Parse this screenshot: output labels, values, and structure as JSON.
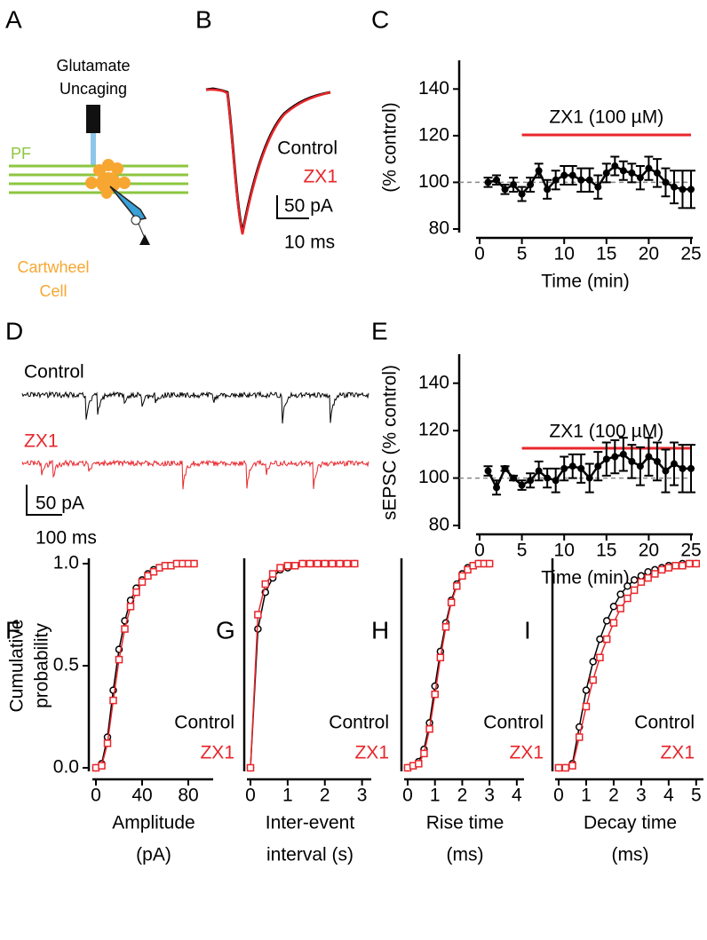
{
  "panel_labels": [
    "A",
    "B",
    "C",
    "D",
    "E",
    "F",
    "G",
    "H",
    "I"
  ],
  "diagram": {
    "uncaging": [
      "Glutamate",
      "Uncaging"
    ],
    "fiber": "PF",
    "cell": [
      "Cartwheel",
      "Cell"
    ]
  },
  "trace_b": {
    "legend": [
      "Control",
      "ZX1"
    ],
    "scale": [
      "50 pA",
      "10 ms"
    ]
  },
  "trace_d": {
    "legend": [
      "Control",
      "ZX1"
    ],
    "scale": [
      "50 pA",
      "100 ms"
    ]
  },
  "chart_data": [
    {
      "type": "line",
      "ylabel": [
        "(% control)"
      ],
      "xlabel": [
        "Time (min)"
      ],
      "annotation": "ZX1 (100 µM)",
      "annotation_span": [
        5,
        25
      ],
      "annotation_color": "#e8262b",
      "reference_line": 100,
      "xlim": [
        0,
        25
      ],
      "xticks": [
        0,
        5,
        10,
        15,
        20,
        25
      ],
      "ylim": [
        80,
        150
      ],
      "yticks": [
        80,
        100,
        120,
        140
      ],
      "x": [
        1,
        2,
        3,
        4,
        5,
        6,
        7,
        8,
        9,
        10,
        11,
        12,
        13,
        14,
        15,
        16,
        17,
        18,
        19,
        20,
        21,
        22,
        23,
        24,
        25
      ],
      "series": [
        {
          "color": "#000000",
          "marker": "dot",
          "values": [
            100,
            101,
            97,
            99,
            95,
            99,
            105,
            97,
            101,
            103,
            103,
            101,
            101,
            98,
            104,
            107,
            105,
            104,
            102,
            106,
            104,
            100,
            98,
            97,
            97
          ],
          "errors": [
            2,
            2,
            2,
            3,
            3,
            3,
            3,
            4,
            4,
            4,
            4,
            5,
            5,
            5,
            4,
            4,
            4,
            4,
            5,
            5,
            6,
            6,
            7,
            8,
            8
          ]
        }
      ]
    },
    {
      "type": "line",
      "ylabel": [
        "sEPSC (% control)"
      ],
      "xlabel": [
        "Time (min)"
      ],
      "annotation": "ZX1 (100 µM)",
      "annotation_span": [
        5,
        25
      ],
      "annotation_color": "#e8262b",
      "reference_line": 100,
      "xlim": [
        0,
        25
      ],
      "xticks": [
        0,
        5,
        10,
        15,
        20,
        25
      ],
      "ylim": [
        80,
        150
      ],
      "yticks": [
        80,
        100,
        120,
        140
      ],
      "x": [
        1,
        2,
        3,
        4,
        5,
        6,
        7,
        8,
        9,
        10,
        11,
        12,
        13,
        14,
        15,
        16,
        17,
        18,
        19,
        20,
        21,
        22,
        23,
        24,
        25
      ],
      "series": [
        {
          "color": "#000000",
          "marker": "dot",
          "values": [
            103,
            96,
            104,
            100,
            97,
            99,
            103,
            100,
            99,
            104,
            105,
            104,
            100,
            105,
            108,
            109,
            110,
            107,
            105,
            109,
            107,
            103,
            106,
            104,
            104
          ],
          "errors": [
            2,
            3,
            1,
            1,
            2,
            3,
            4,
            4,
            5,
            5,
            5,
            6,
            6,
            6,
            7,
            7,
            7,
            7,
            8,
            8,
            8,
            9,
            9,
            10,
            10
          ]
        }
      ]
    },
    {
      "type": "line",
      "ylabel": [
        "Cumulative",
        "probability"
      ],
      "xlabel": [
        "Amplitude",
        "(pA)"
      ],
      "xlim": [
        0,
        100
      ],
      "xticks": [
        0,
        40,
        80
      ],
      "ylim": [
        0,
        1
      ],
      "yticks": [
        {
          "value": 0,
          "label": "0.0"
        },
        {
          "value": 0.5,
          "label": "0.5"
        },
        {
          "value": 1,
          "label": "1.0"
        }
      ],
      "x": [
        0,
        5,
        10,
        15,
        20,
        25,
        30,
        35,
        40,
        45,
        50,
        55,
        60,
        65,
        70,
        75,
        80,
        85
      ],
      "series": [
        {
          "name": "Control",
          "color": "#000000",
          "marker": "circle",
          "values": [
            0,
            0.02,
            0.15,
            0.38,
            0.58,
            0.72,
            0.82,
            0.88,
            0.92,
            0.95,
            0.97,
            0.98,
            0.99,
            0.99,
            1,
            1,
            1,
            1
          ]
        },
        {
          "name": "ZX1",
          "color": "#e8262b",
          "marker": "square",
          "values": [
            0,
            0.01,
            0.12,
            0.33,
            0.53,
            0.68,
            0.79,
            0.86,
            0.91,
            0.94,
            0.96,
            0.98,
            0.99,
            0.99,
            1,
            1,
            1,
            1
          ]
        }
      ]
    },
    {
      "type": "line",
      "xlabel": [
        "Inter-event",
        "interval (s)"
      ],
      "xlim": [
        0,
        3.2
      ],
      "xticks": [
        0,
        1,
        2,
        3
      ],
      "ylim": [
        0,
        1
      ],
      "x": [
        0,
        0.2,
        0.4,
        0.6,
        0.8,
        1,
        1.2,
        1.4,
        1.6,
        1.8,
        2,
        2.2,
        2.4,
        2.6,
        2.8
      ],
      "series": [
        {
          "name": "Control",
          "color": "#000000",
          "marker": "circle",
          "values": [
            0,
            0.68,
            0.86,
            0.93,
            0.97,
            0.98,
            0.99,
            1,
            1,
            1,
            1,
            1,
            1,
            1,
            1
          ]
        },
        {
          "name": "ZX1",
          "color": "#e8262b",
          "marker": "square",
          "values": [
            0,
            0.75,
            0.9,
            0.95,
            0.98,
            0.99,
            0.99,
            1,
            1,
            1,
            1,
            1,
            1,
            1,
            1
          ]
        }
      ]
    },
    {
      "type": "line",
      "xlabel": [
        "Rise time",
        "(ms)"
      ],
      "xlim": [
        0,
        4.2
      ],
      "xticks": [
        0,
        1,
        2,
        3,
        4
      ],
      "ylim": [
        0,
        1
      ],
      "x": [
        0,
        0.2,
        0.4,
        0.6,
        0.8,
        1,
        1.2,
        1.4,
        1.6,
        1.8,
        2,
        2.2,
        2.4,
        2.6,
        2.8,
        3
      ],
      "series": [
        {
          "name": "Control",
          "color": "#000000",
          "marker": "circle",
          "values": [
            0,
            0.01,
            0.03,
            0.09,
            0.22,
            0.4,
            0.57,
            0.71,
            0.82,
            0.9,
            0.95,
            0.98,
            0.99,
            1,
            1,
            1
          ]
        },
        {
          "name": "ZX1",
          "color": "#e8262b",
          "marker": "square",
          "values": [
            0,
            0.01,
            0.02,
            0.07,
            0.19,
            0.36,
            0.54,
            0.69,
            0.81,
            0.89,
            0.94,
            0.97,
            0.99,
            1,
            1,
            1
          ]
        }
      ]
    },
    {
      "type": "line",
      "xlabel": [
        "Decay time",
        "(ms)"
      ],
      "xlim": [
        0,
        5.2
      ],
      "xticks": [
        0,
        1,
        2,
        3,
        4,
        5
      ],
      "ylim": [
        0,
        1
      ],
      "x": [
        0,
        0.25,
        0.5,
        0.75,
        1,
        1.25,
        1.5,
        1.75,
        2,
        2.25,
        2.5,
        2.75,
        3,
        3.25,
        3.5,
        3.75,
        4,
        4.25,
        4.5,
        4.75,
        5
      ],
      "series": [
        {
          "name": "Control",
          "color": "#000000",
          "marker": "circle",
          "values": [
            0,
            0,
            0.02,
            0.2,
            0.38,
            0.52,
            0.63,
            0.72,
            0.79,
            0.85,
            0.89,
            0.92,
            0.94,
            0.96,
            0.97,
            0.98,
            0.99,
            0.99,
            1,
            1,
            1
          ]
        },
        {
          "name": "ZX1",
          "color": "#e8262b",
          "marker": "square",
          "values": [
            0,
            0,
            0.01,
            0.15,
            0.3,
            0.43,
            0.54,
            0.63,
            0.71,
            0.78,
            0.83,
            0.87,
            0.91,
            0.93,
            0.95,
            0.97,
            0.98,
            0.99,
            0.99,
            1,
            1
          ]
        }
      ]
    }
  ]
}
